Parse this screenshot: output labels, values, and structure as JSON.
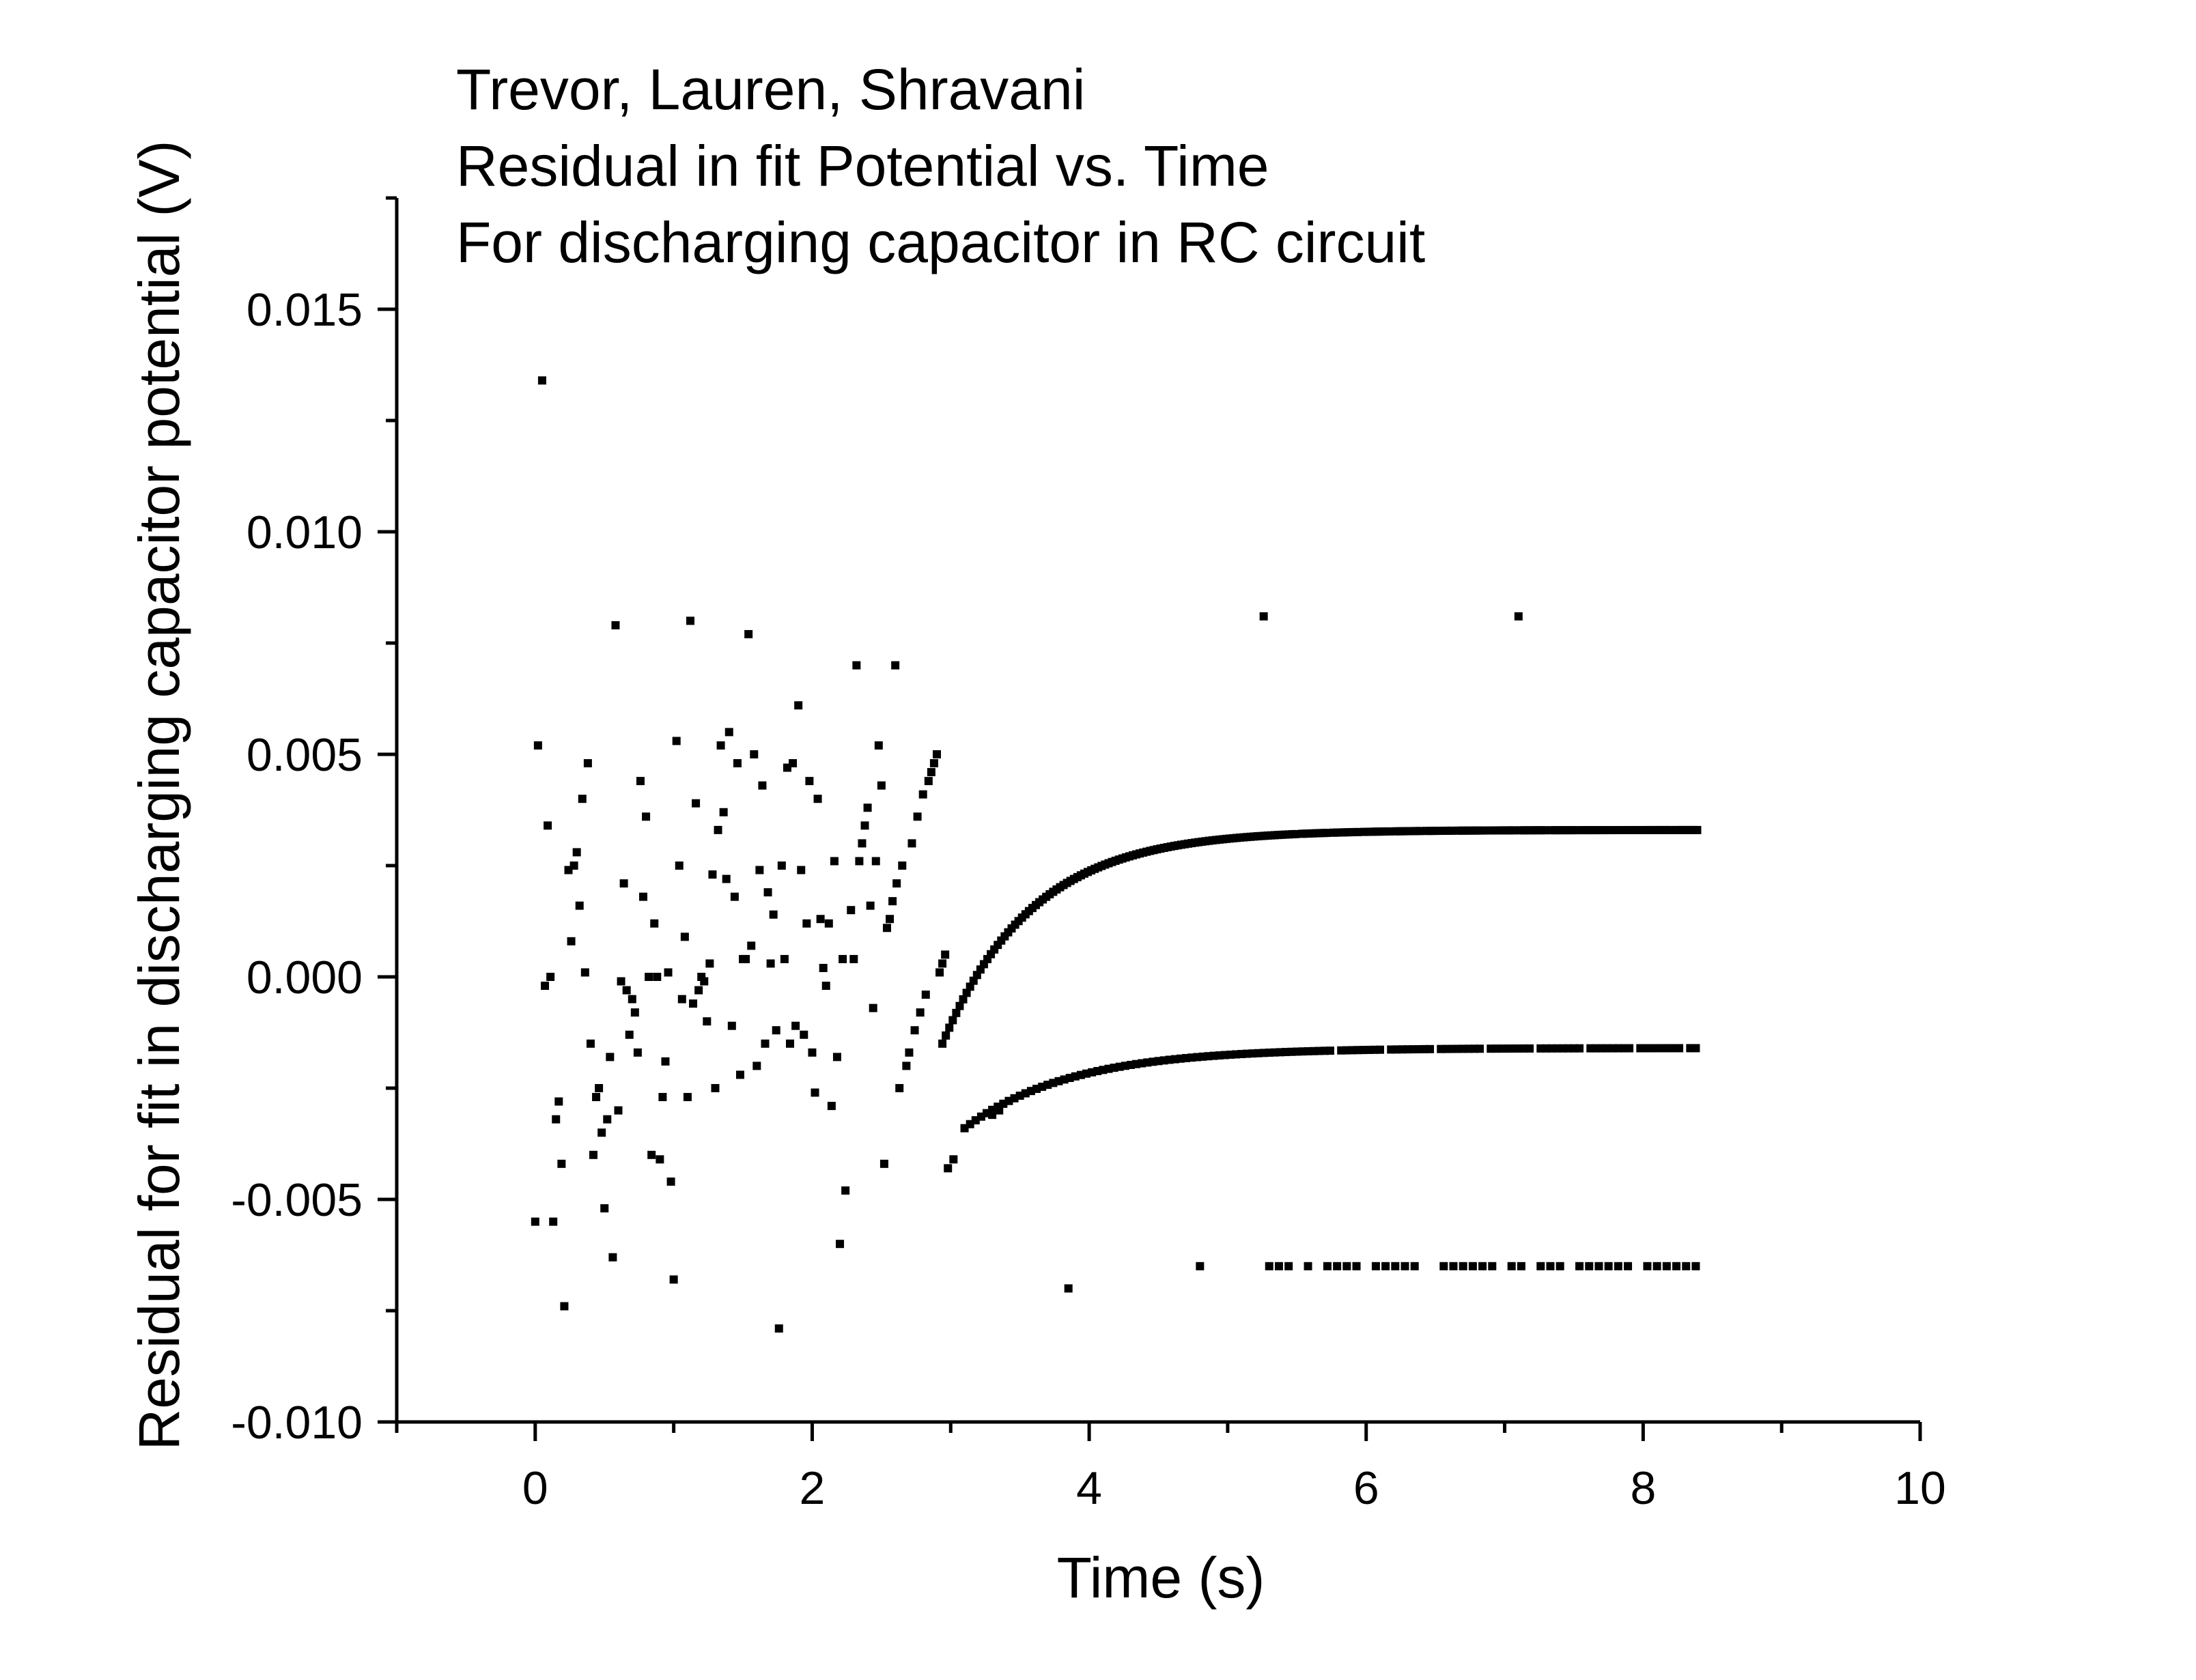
{
  "chart_data": {
    "type": "scatter",
    "title_lines": [
      "Trevor, Lauren, Shravani",
      "Residual in fit Potential vs. Time",
      "For discharging capacitor in RC circuit"
    ],
    "xlabel": "Time (s)",
    "ylabel": "Residual for fit in discharging capacitor potential (V)",
    "xlim": [
      -1,
      10
    ],
    "ylim": [
      -0.01,
      0.0175
    ],
    "x_ticks": [
      0,
      2,
      4,
      6,
      8,
      10
    ],
    "x_tick_labels": [
      "0",
      "2",
      "4",
      "6",
      "8",
      "10"
    ],
    "y_ticks": [
      -0.01,
      -0.005,
      0.0,
      0.005,
      0.01,
      0.015
    ],
    "y_tick_labels": [
      "-0.010",
      "-0.005",
      "0.000",
      "0.005",
      "0.010",
      "0.015"
    ],
    "grid": false,
    "legend": "none",
    "marker_color": "#000000",
    "series": [
      {
        "points": [
          [
            0.0,
            -0.0055
          ],
          [
            0.02,
            0.0052
          ],
          [
            0.05,
            0.0134
          ],
          [
            0.07,
            -0.0002
          ],
          [
            0.09,
            0.0034
          ],
          [
            0.11,
            0.0
          ],
          [
            0.13,
            -0.0055
          ],
          [
            0.15,
            -0.0032
          ],
          [
            0.17,
            -0.0028
          ],
          [
            0.19,
            -0.0042
          ],
          [
            0.21,
            -0.0074
          ],
          [
            0.24,
            0.0024
          ],
          [
            0.26,
            0.0008
          ],
          [
            0.28,
            0.0025
          ],
          [
            0.3,
            0.0028
          ],
          [
            0.32,
            0.0016
          ],
          [
            0.34,
            0.004
          ],
          [
            0.36,
            0.0001
          ],
          [
            0.38,
            0.0048
          ],
          [
            0.4,
            -0.0015
          ],
          [
            0.42,
            -0.004
          ],
          [
            0.44,
            -0.0027
          ],
          [
            0.46,
            -0.0025
          ],
          [
            0.48,
            -0.0035
          ],
          [
            0.5,
            -0.0052
          ],
          [
            0.52,
            -0.0032
          ],
          [
            0.54,
            -0.0018
          ],
          [
            0.56,
            -0.0063
          ],
          [
            0.58,
            0.0079
          ],
          [
            0.6,
            -0.003
          ],
          [
            0.62,
            -0.0001
          ],
          [
            0.64,
            0.0021
          ],
          [
            0.66,
            -0.0003
          ],
          [
            0.68,
            -0.0013
          ],
          [
            0.7,
            -0.0005
          ],
          [
            0.72,
            -0.0008
          ],
          [
            0.74,
            -0.0017
          ],
          [
            0.76,
            0.0044
          ],
          [
            0.78,
            0.0018
          ],
          [
            0.8,
            0.0036
          ],
          [
            0.82,
            0.0
          ],
          [
            0.84,
            -0.004
          ],
          [
            0.86,
            0.0012
          ],
          [
            0.88,
            0.0
          ],
          [
            0.9,
            -0.0041
          ],
          [
            0.92,
            -0.0027
          ],
          [
            0.94,
            -0.0019
          ],
          [
            0.96,
            0.0001
          ],
          [
            0.98,
            -0.0046
          ],
          [
            1.0,
            -0.0068
          ],
          [
            1.02,
            0.0053
          ],
          [
            1.04,
            0.0025
          ],
          [
            1.06,
            -0.0005
          ],
          [
            1.08,
            0.0009
          ],
          [
            1.1,
            -0.0027
          ],
          [
            1.12,
            0.008
          ],
          [
            1.14,
            -0.0006
          ],
          [
            1.16,
            0.0039
          ],
          [
            1.18,
            -0.0003
          ],
          [
            1.2,
            0.0
          ],
          [
            1.22,
            -0.0001
          ],
          [
            1.24,
            -0.001
          ],
          [
            1.26,
            0.0003
          ],
          [
            1.28,
            0.0023
          ],
          [
            1.3,
            -0.0025
          ],
          [
            1.32,
            0.0033
          ],
          [
            1.34,
            0.0052
          ],
          [
            1.36,
            0.0037
          ],
          [
            1.38,
            0.0022
          ],
          [
            1.4,
            0.0055
          ],
          [
            1.42,
            -0.0011
          ],
          [
            1.44,
            0.0018
          ],
          [
            1.46,
            0.0048
          ],
          [
            1.48,
            -0.0022
          ],
          [
            1.5,
            0.0004
          ],
          [
            1.52,
            0.0004
          ],
          [
            1.54,
            0.0077
          ],
          [
            1.56,
            0.0007
          ],
          [
            1.58,
            0.005
          ],
          [
            1.6,
            -0.002
          ],
          [
            1.62,
            0.0024
          ],
          [
            1.64,
            0.0043
          ],
          [
            1.66,
            -0.0015
          ],
          [
            1.68,
            0.0019
          ],
          [
            1.7,
            0.0003
          ],
          [
            1.72,
            0.0014
          ],
          [
            1.74,
            -0.0012
          ],
          [
            1.76,
            -0.0079
          ],
          [
            1.78,
            0.0025
          ],
          [
            1.8,
            0.0004
          ],
          [
            1.82,
            0.0047
          ],
          [
            1.84,
            -0.0015
          ],
          [
            1.86,
            0.0048
          ],
          [
            1.88,
            -0.0011
          ],
          [
            1.9,
            0.0061
          ],
          [
            1.92,
            0.0024
          ],
          [
            1.94,
            -0.0013
          ],
          [
            1.96,
            0.0012
          ],
          [
            1.98,
            0.0044
          ],
          [
            2.0,
            -0.0017
          ],
          [
            2.02,
            -0.0026
          ],
          [
            2.04,
            0.004
          ],
          [
            2.06,
            0.0013
          ],
          [
            2.08,
            0.0002
          ],
          [
            2.1,
            -0.0002
          ],
          [
            2.12,
            0.0012
          ],
          [
            2.14,
            -0.0029
          ],
          [
            2.16,
            0.0026
          ],
          [
            2.18,
            -0.0018
          ],
          [
            2.2,
            -0.006
          ],
          [
            2.22,
            0.0004
          ],
          [
            2.24,
            -0.0048
          ],
          [
            2.28,
            0.0015
          ],
          [
            2.3,
            0.0004
          ],
          [
            2.32,
            0.007
          ],
          [
            2.34,
            0.0026
          ],
          [
            2.36,
            0.003
          ],
          [
            2.38,
            0.0034
          ],
          [
            2.4,
            0.0038
          ],
          [
            2.42,
            0.0016
          ],
          [
            2.44,
            -0.0007
          ],
          [
            2.46,
            0.0026
          ],
          [
            2.48,
            0.0052
          ],
          [
            2.5,
            0.0043
          ],
          [
            2.52,
            -0.0042
          ],
          [
            2.54,
            0.0011
          ],
          [
            2.56,
            0.0013
          ],
          [
            2.58,
            0.0017
          ],
          [
            2.6,
            0.007
          ],
          [
            2.61,
            0.0021
          ],
          [
            2.63,
            -0.0025
          ],
          [
            2.65,
            0.0025
          ],
          [
            2.68,
            -0.002
          ],
          [
            2.7,
            -0.0017
          ],
          [
            2.72,
            0.003
          ],
          [
            2.74,
            -0.0012
          ],
          [
            2.76,
            0.0036
          ],
          [
            2.78,
            -0.0008
          ],
          [
            2.8,
            0.0041
          ],
          [
            2.82,
            -0.0004
          ],
          [
            2.84,
            0.0044
          ],
          [
            2.86,
            0.0046
          ],
          [
            2.88,
            0.0048
          ],
          [
            2.9,
            0.005
          ],
          [
            2.92,
            0.0001
          ],
          [
            2.94,
            0.0003
          ],
          [
            2.96,
            0.0005
          ],
          [
            2.98,
            -0.0043
          ],
          [
            3.02,
            -0.0041
          ],
          [
            3.3,
            -0.0031
          ],
          [
            3.35,
            -0.003
          ],
          [
            3.85,
            -0.007
          ],
          [
            4.8,
            -0.0065
          ],
          [
            5.26,
            0.0081
          ],
          [
            7.1,
            0.0081
          ]
        ]
      }
    ],
    "curve_points": [
      {
        "t_start": 2.94,
        "t_end": 8.4,
        "step": 0.025,
        "a": 0.0033,
        "b": -0.0048,
        "k": 1.55,
        "t0": 2.94,
        "gap_pattern": "dense"
      },
      {
        "t_start": 3.1,
        "t_end": 8.4,
        "step": 0.04,
        "a": -0.0016,
        "b": -0.0018,
        "k": 1.3,
        "t0": 3.1,
        "gap_pattern": "dense"
      },
      {
        "t_start": 5.3,
        "t_end": 8.4,
        "step": 0.07,
        "a": -0.0065,
        "b": 0.0,
        "k": 1.0,
        "t0": 5.3,
        "gap_pattern": "sparse"
      }
    ]
  }
}
